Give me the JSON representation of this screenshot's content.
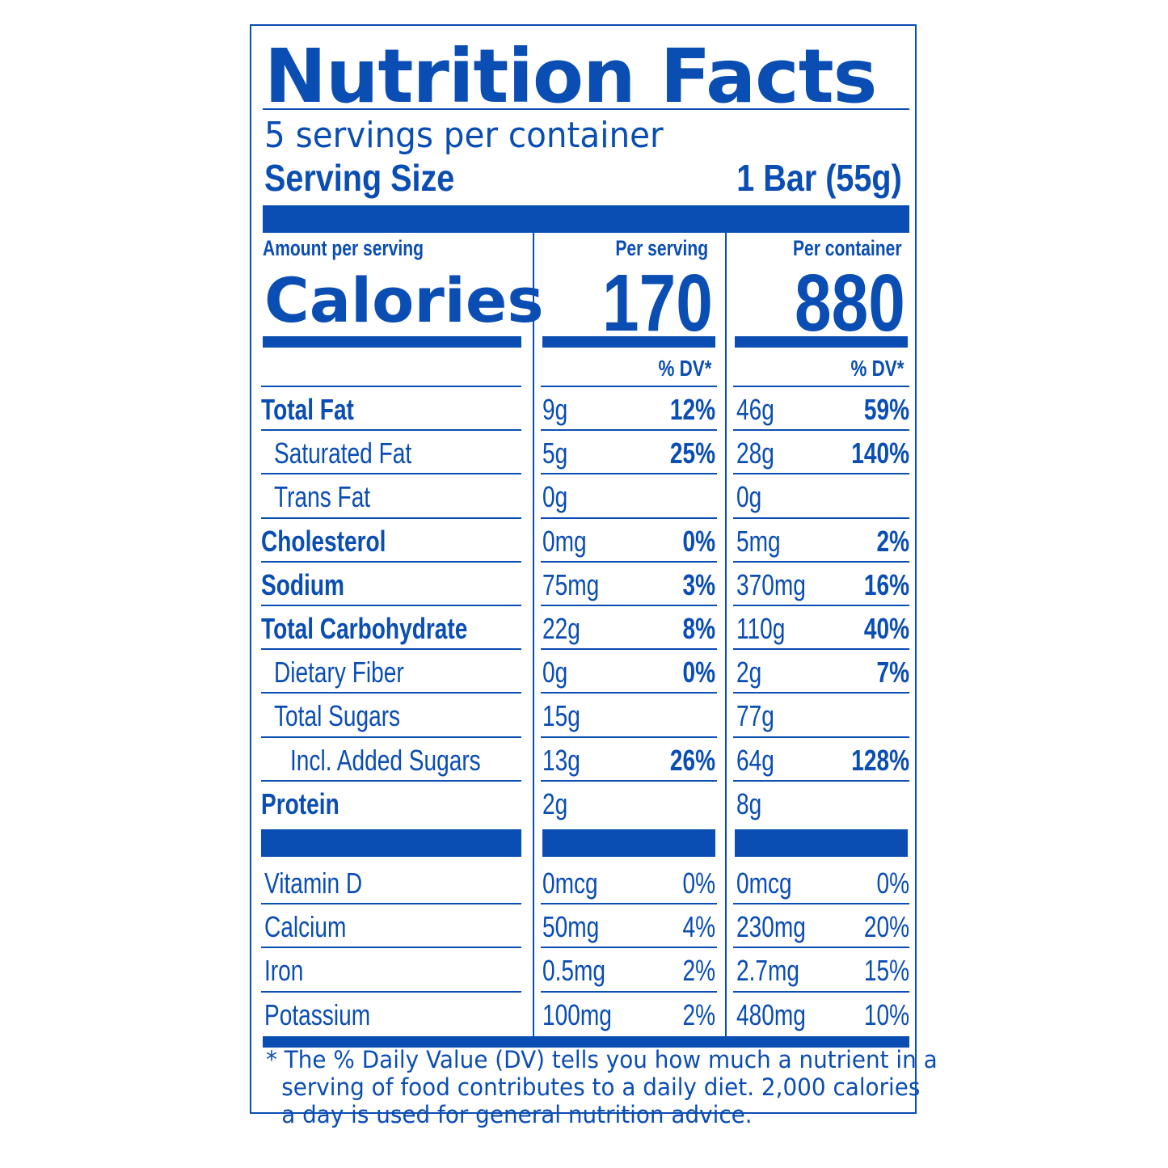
{
  "title": "Nutrition Facts",
  "servings_per_container": "5 servings per container",
  "serving_size_label": "Serving Size",
  "serving_size_value": "1 Bar (55g)",
  "amount_per_serving": "Amount per serving",
  "per_serving_header": "Per serving",
  "per_container_header": "Per container",
  "calories_label": "Calories",
  "calories_serving": "170",
  "calories_container": "880",
  "dv_header": "% DV*",
  "nutrients": [
    {
      "name": "Total Fat",
      "serving_amt": "9g",
      "serving_dv": "12%",
      "container_amt": "46g",
      "container_dv": "59%"
    },
    {
      "name": "Saturated Fat",
      "serving_amt": "5g",
      "serving_dv": "25%",
      "container_amt": "28g",
      "container_dv": "140%"
    },
    {
      "name": "Trans Fat",
      "serving_amt": "0g",
      "serving_dv": "",
      "container_amt": "0g",
      "container_dv": ""
    },
    {
      "name": "Cholesterol",
      "serving_amt": "0mg",
      "serving_dv": "0%",
      "container_amt": "5mg",
      "container_dv": "2%"
    },
    {
      "name": "Sodium",
      "serving_amt": "75mg",
      "serving_dv": "3%",
      "container_amt": "370mg",
      "container_dv": "16%"
    },
    {
      "name": "Total Carbohydrate",
      "serving_amt": "22g",
      "serving_dv": "8%",
      "container_amt": "110g",
      "container_dv": "40%"
    },
    {
      "name": "Dietary Fiber",
      "serving_amt": "0g",
      "serving_dv": "0%",
      "container_amt": "2g",
      "container_dv": "7%"
    },
    {
      "name": "Total Sugars",
      "serving_amt": "15g",
      "serving_dv": "",
      "container_amt": "77g",
      "container_dv": ""
    },
    {
      "name": "Incl. Added Sugars",
      "serving_amt": "13g",
      "serving_dv": "26%",
      "container_amt": "64g",
      "container_dv": "128%"
    },
    {
      "name": "Protein",
      "serving_amt": "2g",
      "serving_dv": "",
      "container_amt": "8g",
      "container_dv": ""
    }
  ],
  "vitamins": [
    {
      "name": "Vitamin D",
      "serving_amt": "0mcg",
      "serving_dv": "0%",
      "container_amt": "0mcg",
      "container_dv": "0%"
    },
    {
      "name": "Calcium",
      "serving_amt": "50mg",
      "serving_dv": "4%",
      "container_amt": "230mg",
      "container_dv": "20%"
    },
    {
      "name": "Iron",
      "serving_amt": "0.5mg",
      "serving_dv": "2%",
      "container_amt": "2.7mg",
      "container_dv": "15%"
    },
    {
      "name": "Potassium",
      "serving_amt": "100mg",
      "serving_dv": "2%",
      "container_amt": "480mg",
      "container_dv": "10%"
    }
  ],
  "footnote": [
    "* The % Daily Value (DV) tells you how much a nutrient in a",
    "serving of food contributes to a daily diet. 2,000 calories",
    "a day is used for general nutrition advice."
  ],
  "colors": {
    "ink": "#0a4db3",
    "background": "#ffffff"
  }
}
